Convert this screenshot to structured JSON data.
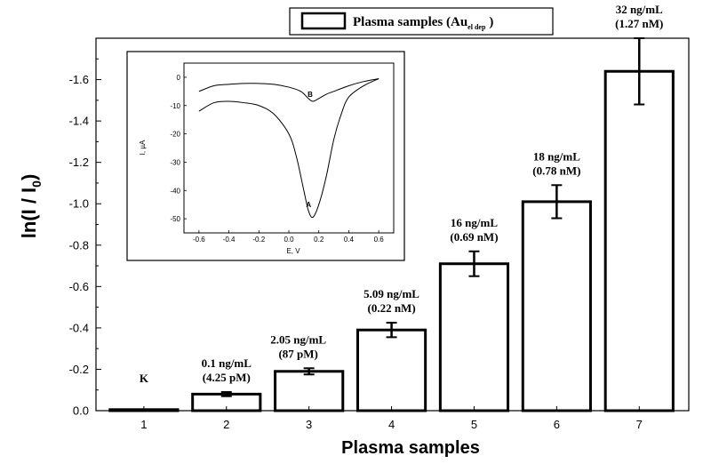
{
  "chart_data": {
    "type": "bar",
    "xlabel": "Plasma samples",
    "ylabel": "ln(I / I",
    "ylabel_sub": "0",
    "ylabel_close": ")",
    "legend": {
      "label": "Plasma samples  (Au",
      "label_sub": "el dep",
      "label_close": ")",
      "placement": "top-center"
    },
    "categories": [
      "1",
      "2",
      "3",
      "4",
      "5",
      "6",
      "7"
    ],
    "values": [
      -0.005,
      -0.08,
      -0.19,
      -0.39,
      -0.71,
      -1.01,
      -1.64
    ],
    "errors": [
      0.0,
      0.01,
      0.015,
      0.035,
      0.06,
      0.08,
      0.16
    ],
    "ylim": [
      0,
      -1.8
    ],
    "yticks": [
      0.0,
      -0.2,
      -0.4,
      -0.6,
      -0.8,
      -1.0,
      -1.2,
      -1.4,
      -1.6
    ],
    "ytick_labels": [
      "0.0",
      "-0.2",
      "-0.4",
      "-0.6",
      "-0.8",
      "-1.0",
      "-1.2",
      "-1.4",
      "-1.6"
    ],
    "annotations": [
      {
        "category": "1",
        "lines": [
          "K"
        ]
      },
      {
        "category": "2",
        "lines": [
          "0.1 ng/mL",
          "(4.25 pM)"
        ]
      },
      {
        "category": "3",
        "lines": [
          "2.05 ng/mL",
          "(87 pM)"
        ]
      },
      {
        "category": "4",
        "lines": [
          "5.09 ng/mL",
          "(0.22 nM)"
        ]
      },
      {
        "category": "5",
        "lines": [
          "16 ng/mL",
          "(0.69 nM)"
        ]
      },
      {
        "category": "6",
        "lines": [
          "18 ng/mL",
          "(0.78 nM)"
        ]
      },
      {
        "category": "7",
        "lines": [
          "32 ng/mL",
          "(1.27 nM)"
        ]
      }
    ],
    "inset": {
      "type": "line",
      "xlabel": "E, V",
      "ylabel": "I, µA",
      "xlim": [
        -0.7,
        0.7
      ],
      "ylim": [
        -55,
        5
      ],
      "xticks": [
        -0.6,
        -0.4,
        -0.2,
        0.0,
        0.2,
        0.4,
        0.6
      ],
      "xtick_labels": [
        "-0.6",
        "-0.4",
        "-0.2",
        "0.0",
        "0.2",
        "0.4",
        "0.6"
      ],
      "yticks": [
        0,
        -10,
        -20,
        -30,
        -40,
        -50
      ],
      "ytick_labels": [
        "0",
        "-10",
        "-20",
        "-30",
        "-40",
        "-50"
      ],
      "series": [
        {
          "name": "B",
          "x": [
            -0.6,
            -0.5,
            -0.4,
            -0.3,
            -0.2,
            -0.1,
            0.0,
            0.08,
            0.13,
            0.16,
            0.2,
            0.25,
            0.3,
            0.4,
            0.5,
            0.6
          ],
          "y": [
            -5,
            -3,
            -2.5,
            -2.2,
            -2.2,
            -2.5,
            -3.5,
            -5,
            -7.5,
            -8.5,
            -7.5,
            -6,
            -5,
            -3,
            -1.5,
            -0.5
          ]
        },
        {
          "name": "A",
          "x": [
            -0.6,
            -0.5,
            -0.4,
            -0.3,
            -0.2,
            -0.1,
            0.0,
            0.05,
            0.1,
            0.13,
            0.16,
            0.2,
            0.25,
            0.3,
            0.35,
            0.4,
            0.5,
            0.6
          ],
          "y": [
            -12,
            -9,
            -8.5,
            -9,
            -10,
            -13,
            -20,
            -28,
            -40,
            -47,
            -49.5,
            -45,
            -35,
            -22,
            -13,
            -7,
            -3,
            -0.5
          ]
        }
      ],
      "labels": [
        {
          "text": "A",
          "x": 0.15,
          "y": -45
        },
        {
          "text": "B",
          "x": 0.16,
          "y": -6
        }
      ]
    }
  }
}
